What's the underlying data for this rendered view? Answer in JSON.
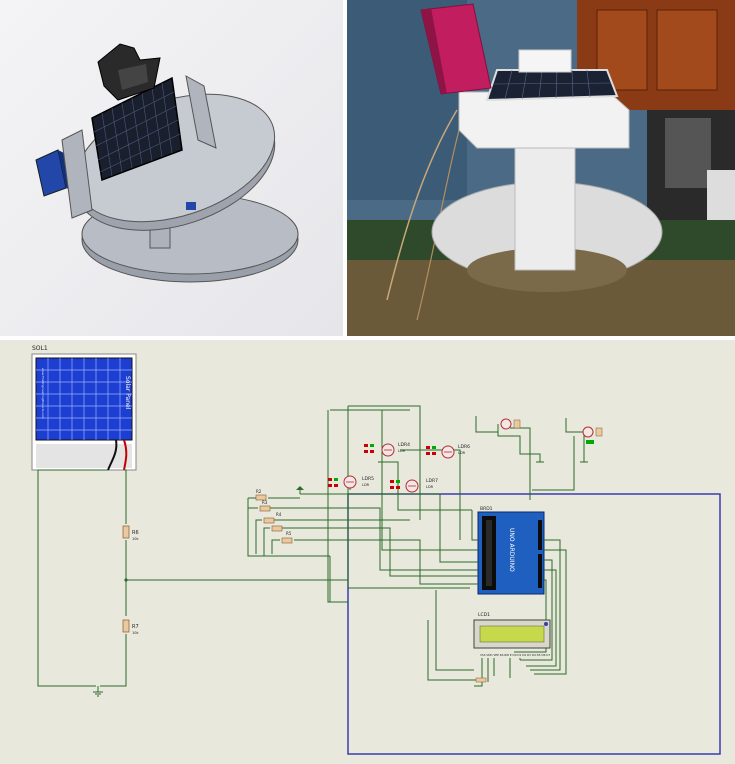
{
  "panels": {
    "cad": {
      "name": "cad-render"
    },
    "photo": {
      "name": "prototype-photo"
    },
    "schematic": {
      "name": "circuit-schematic"
    }
  },
  "schematic": {
    "solar_ref": "SOL1",
    "solar_panel_text": "Solar Panel",
    "solar_panel_caption": "www.TheEngineeringProjects.com",
    "resistors": {
      "r6": {
        "ref": "R6",
        "val": "10k"
      },
      "r7": {
        "ref": "R7",
        "val": "10k"
      },
      "r2": {
        "ref": "R2",
        "val": "10k"
      },
      "r3": {
        "ref": "R3",
        "val": "10k"
      },
      "r4": {
        "ref": "R4",
        "val": "10k"
      },
      "r5": {
        "ref": "R5",
        "val": "10k"
      },
      "r1": {
        "ref": "R1",
        "val": "10k"
      }
    },
    "ldrs": {
      "ldr4": {
        "ref": "LDR4",
        "val": "LDR"
      },
      "ldr5": {
        "ref": "LDR5",
        "val": "LDR"
      },
      "ldr6": {
        "ref": "LDR6",
        "val": "LDR"
      },
      "ldr7": {
        "ref": "LDR7",
        "val": "LDR"
      }
    },
    "arduino_ref": "BRD1",
    "arduino_text": "UNO ARDUINO",
    "lcd_ref": "LCD1",
    "lcd_pins": "VSS VDD VEE RS RW E D0 D1 D2 D3 D4 D5 D6 D7"
  },
  "colors": {
    "schematic_bg": "#e9e8dc",
    "wire": "#2c6b2c",
    "frame": "#3a3ab0",
    "arduino": "#1f5fbf",
    "lcd": "#c6d94a",
    "solar_cells": "#1d3fd1"
  }
}
